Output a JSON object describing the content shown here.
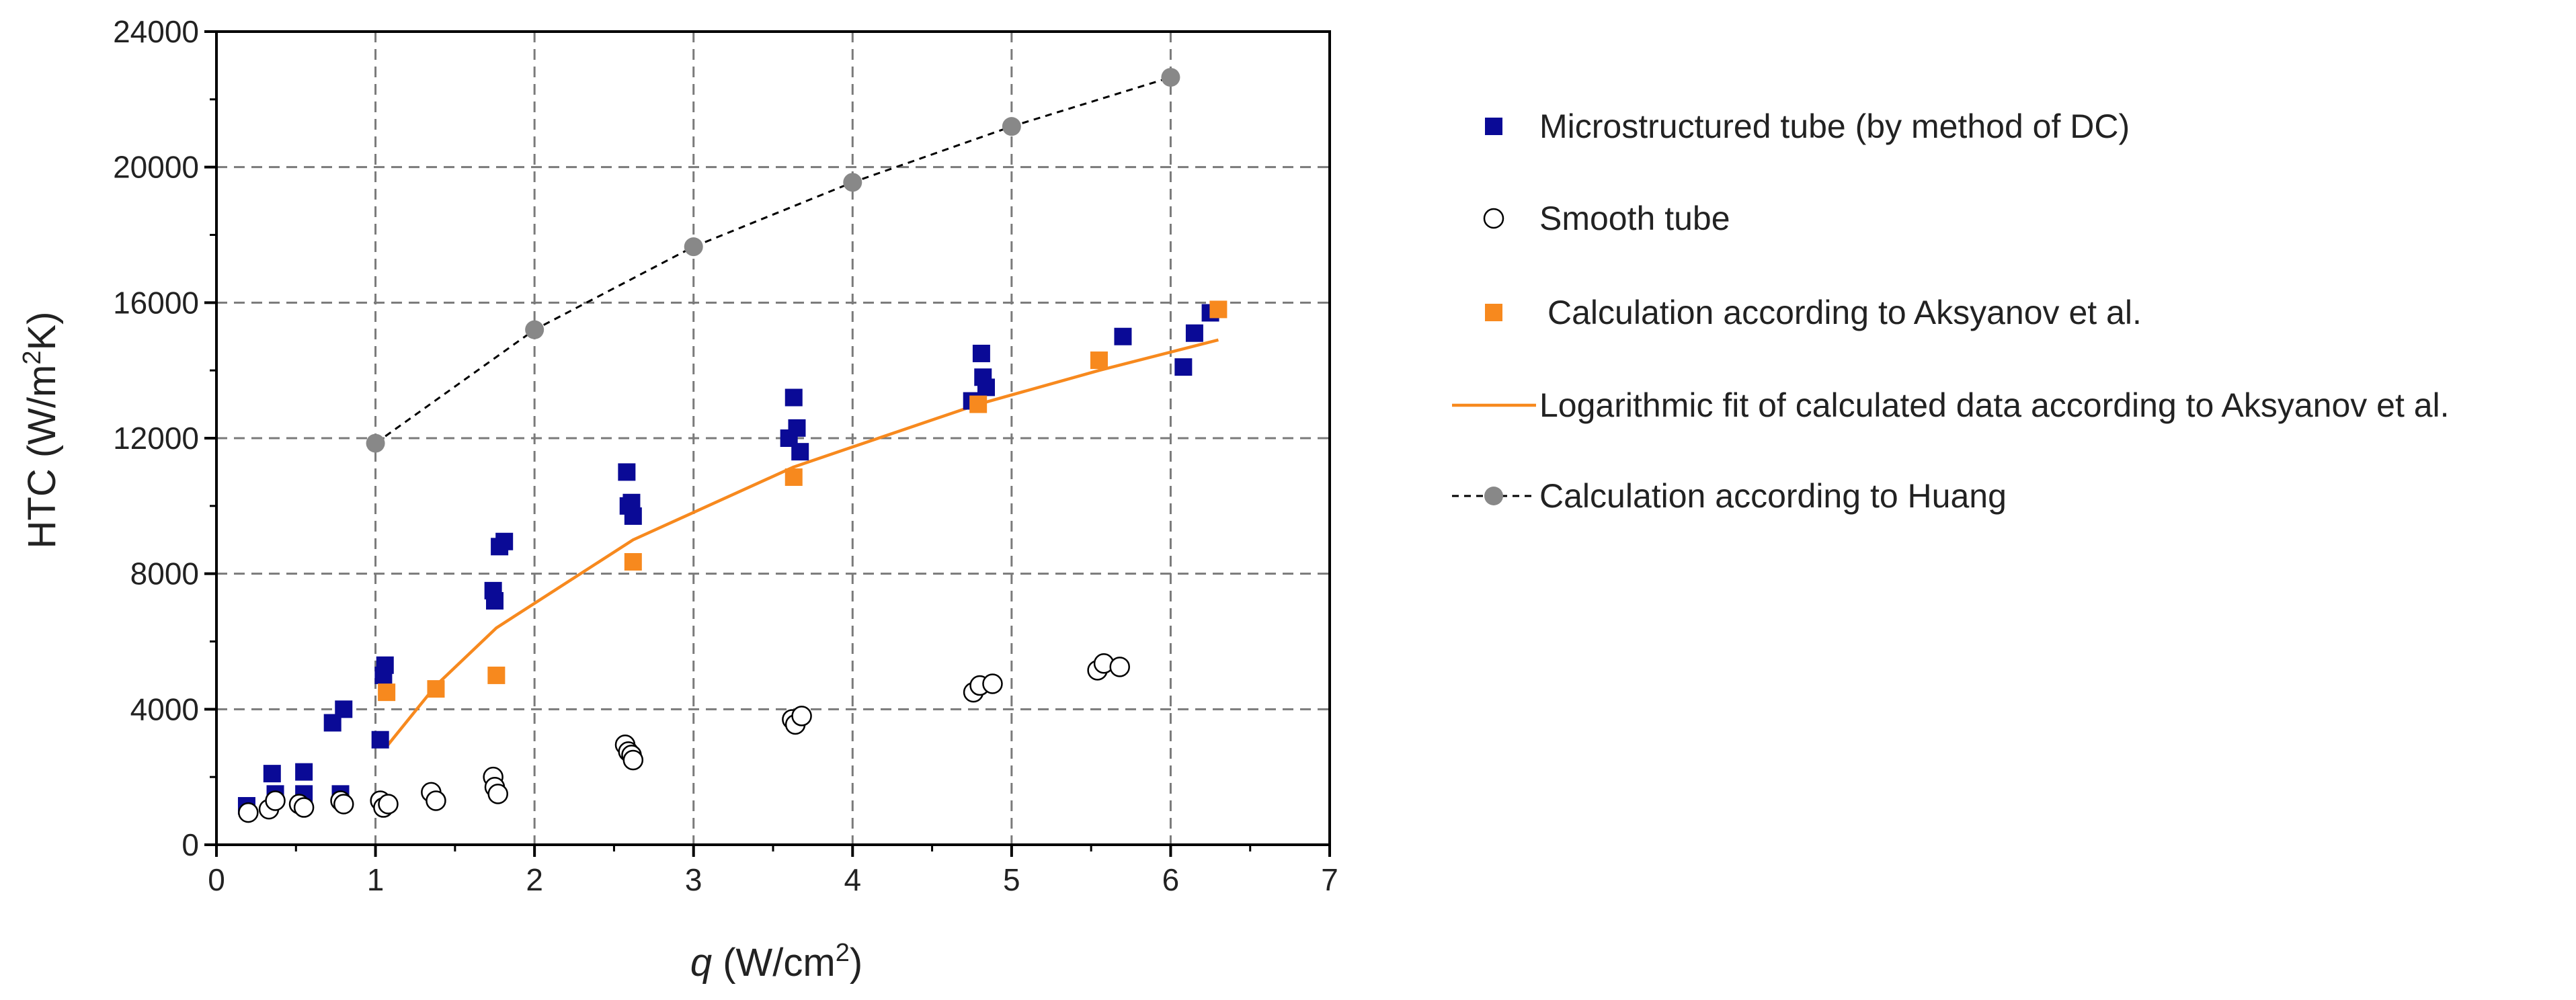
{
  "chart_data": {
    "type": "scatter",
    "title": "",
    "xlabel": {
      "symbol": "q",
      "text": " (W/cm",
      "sup": "2",
      "close": ")"
    },
    "ylabel": {
      "text": "HTC (W/m",
      "sup": "2",
      "close": "K)"
    },
    "xlim": [
      0,
      7
    ],
    "ylim": [
      0,
      24000
    ],
    "x_ticks": [
      0,
      1,
      2,
      3,
      4,
      5,
      6,
      7
    ],
    "x_tick_labels": [
      "0",
      "1",
      "2",
      "3",
      "4",
      "5",
      "6",
      "7"
    ],
    "y_ticks": [
      0,
      4000,
      8000,
      12000,
      16000,
      20000,
      24000
    ],
    "y_tick_labels": [
      "0",
      "4000",
      "8000",
      "12000",
      "16000",
      "20000",
      "24000"
    ],
    "grid": true,
    "legend_position": "right",
    "series": [
      {
        "name": "Microstructured tube (by method of DC)",
        "marker": "square-filled",
        "color": "#0a0a96",
        "points": [
          [
            0.19,
            1150
          ],
          [
            0.35,
            2100
          ],
          [
            0.37,
            1500
          ],
          [
            0.55,
            2150
          ],
          [
            0.55,
            1500
          ],
          [
            0.73,
            3600
          ],
          [
            0.78,
            1500
          ],
          [
            0.8,
            4000
          ],
          [
            1.03,
            3100
          ],
          [
            1.05,
            5000
          ],
          [
            1.06,
            5300
          ],
          [
            1.74,
            7500
          ],
          [
            1.75,
            7200
          ],
          [
            1.78,
            8800
          ],
          [
            1.81,
            8950
          ],
          [
            2.58,
            11000
          ],
          [
            2.59,
            10000
          ],
          [
            2.61,
            10100
          ],
          [
            2.62,
            9700
          ],
          [
            3.6,
            12000
          ],
          [
            3.63,
            13200
          ],
          [
            3.65,
            12300
          ],
          [
            3.67,
            11600
          ],
          [
            4.75,
            13100
          ],
          [
            4.81,
            14500
          ],
          [
            4.82,
            13800
          ],
          [
            4.84,
            13500
          ],
          [
            5.7,
            15000
          ],
          [
            6.08,
            14100
          ],
          [
            6.15,
            15100
          ],
          [
            6.25,
            15700
          ]
        ]
      },
      {
        "name": "Smooth tube",
        "marker": "circle-open",
        "color": "#000000",
        "points": [
          [
            0.2,
            950
          ],
          [
            0.33,
            1050
          ],
          [
            0.37,
            1300
          ],
          [
            0.52,
            1200
          ],
          [
            0.55,
            1100
          ],
          [
            0.78,
            1300
          ],
          [
            0.8,
            1200
          ],
          [
            1.03,
            1300
          ],
          [
            1.05,
            1100
          ],
          [
            1.08,
            1200
          ],
          [
            1.35,
            1550
          ],
          [
            1.38,
            1300
          ],
          [
            1.74,
            2000
          ],
          [
            1.75,
            1700
          ],
          [
            1.77,
            1500
          ],
          [
            2.57,
            2950
          ],
          [
            2.59,
            2750
          ],
          [
            2.61,
            2650
          ],
          [
            2.62,
            2500
          ],
          [
            3.62,
            3700
          ],
          [
            3.64,
            3550
          ],
          [
            3.68,
            3800
          ],
          [
            4.76,
            4500
          ],
          [
            4.8,
            4700
          ],
          [
            4.88,
            4750
          ],
          [
            5.54,
            5150
          ],
          [
            5.58,
            5350
          ],
          [
            5.68,
            5250
          ]
        ]
      },
      {
        "name": "Calculation according to Aksyanov et al.",
        "marker": "square-filled",
        "color": "#f7891e",
        "points": [
          [
            1.07,
            4500
          ],
          [
            1.38,
            4600
          ],
          [
            1.76,
            5000
          ],
          [
            2.62,
            8350
          ],
          [
            3.63,
            10850
          ],
          [
            4.79,
            13000
          ],
          [
            5.55,
            14300
          ],
          [
            6.3,
            15800
          ]
        ]
      },
      {
        "name": "Logarithmic fit of calculated data according to Aksyanov et al.",
        "marker": "line",
        "color": "#f7891e",
        "points": [
          [
            1.07,
            2900
          ],
          [
            1.38,
            4700
          ],
          [
            1.76,
            6400
          ],
          [
            2.62,
            9000
          ],
          [
            3.63,
            11150
          ],
          [
            4.79,
            13000
          ],
          [
            5.55,
            14000
          ],
          [
            6.3,
            14900
          ]
        ]
      },
      {
        "name": "Calculation according to Huang",
        "marker": "circle-filled-dashed-line",
        "color": "#888888",
        "line_color": "#000000",
        "points": [
          [
            1,
            11850
          ],
          [
            2,
            15200
          ],
          [
            3,
            17650
          ],
          [
            4,
            19550
          ],
          [
            5,
            21200
          ],
          [
            6,
            22650
          ]
        ]
      }
    ]
  }
}
